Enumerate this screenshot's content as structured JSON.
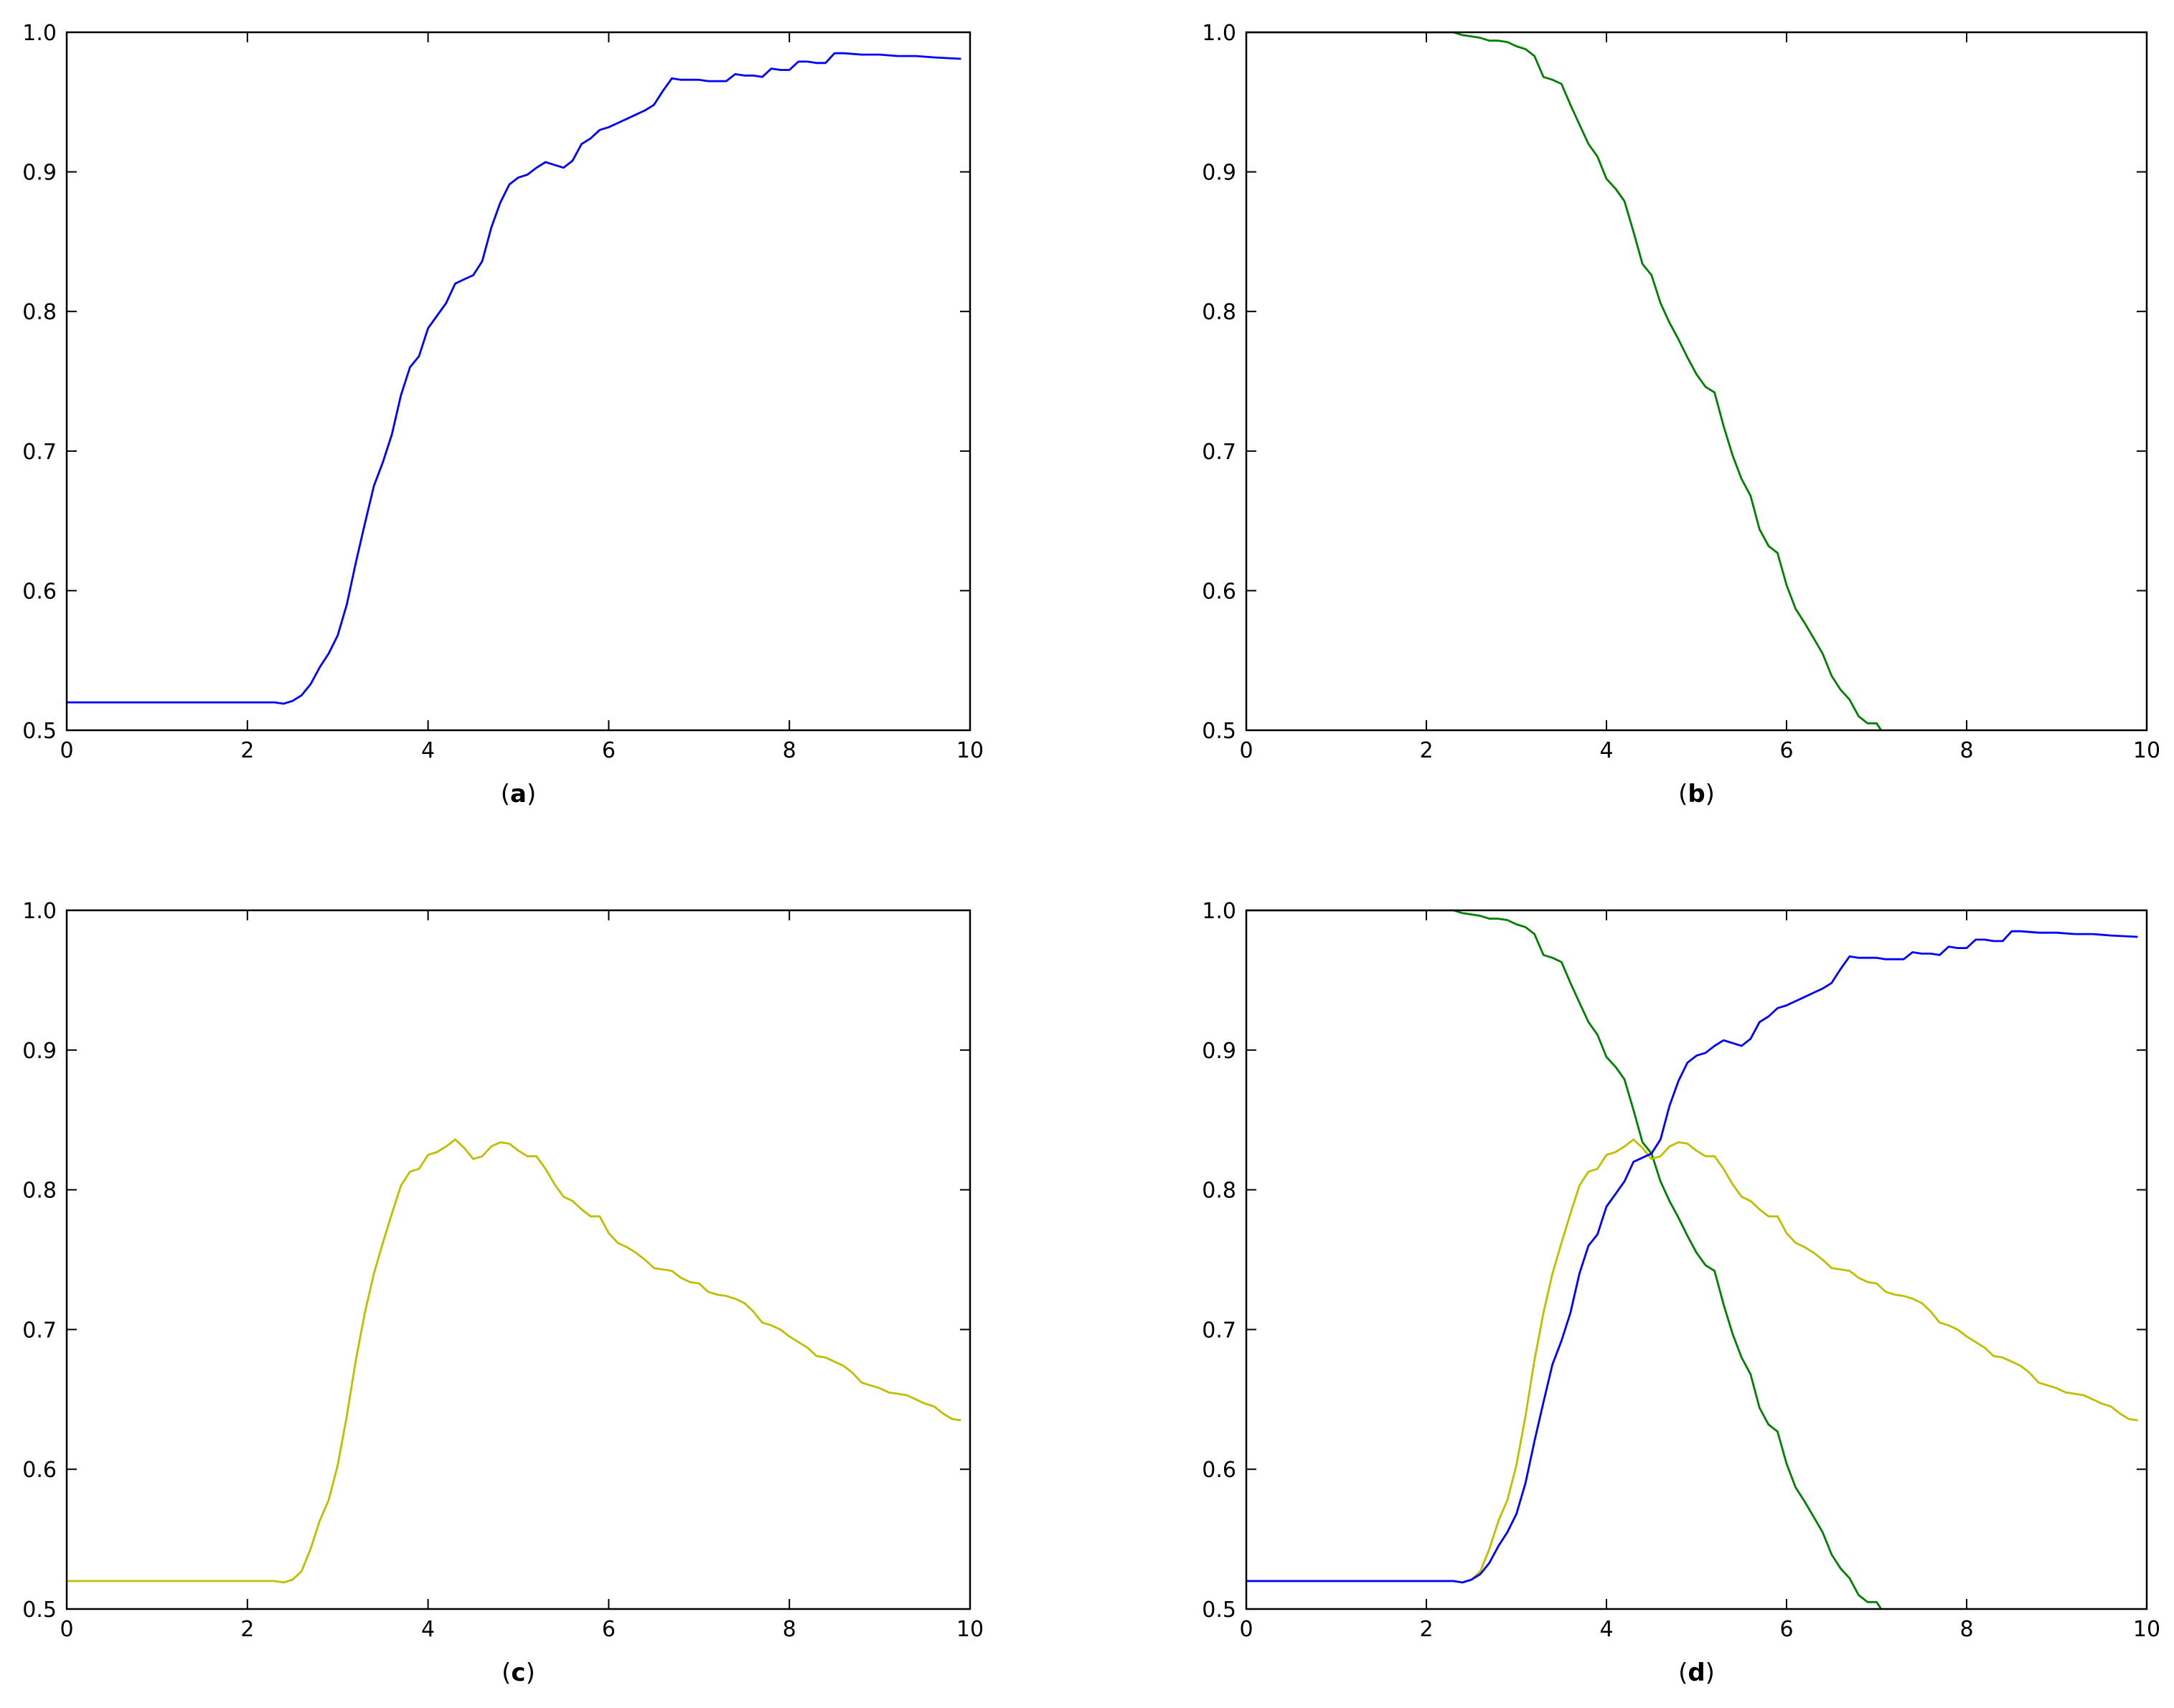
{
  "chart_data": [
    {
      "panel": "a",
      "type": "line",
      "caption": {
        "open": "(",
        "letter": "a",
        "close": ")"
      },
      "xlim": [
        0,
        10
      ],
      "ylim": [
        0.5,
        1.0
      ],
      "xticks": [
        0,
        2,
        4,
        6,
        8,
        10
      ],
      "yticks": [
        "0.5",
        "0.6",
        "0.7",
        "0.8",
        "0.9",
        "1.0"
      ],
      "grid": false,
      "series": [
        {
          "color": "#0000ff",
          "x": [
            0,
            2.3,
            2.4,
            2.5,
            2.6,
            2.7,
            2.8,
            2.9,
            3.0,
            3.1,
            3.2,
            3.3,
            3.4,
            3.5,
            3.6,
            3.7,
            3.8,
            3.9,
            4.0,
            4.1,
            4.2,
            4.3,
            4.4,
            4.5,
            4.6,
            4.7,
            4.8,
            4.9,
            5.0,
            5.1,
            5.2,
            5.3,
            5.4,
            5.5,
            5.6,
            5.7,
            5.8,
            5.9,
            6.0,
            6.1,
            6.2,
            6.3,
            6.4,
            6.5,
            6.6,
            6.7,
            6.8,
            6.9,
            7.0,
            7.1,
            7.2,
            7.3,
            7.4,
            7.5,
            7.6,
            7.7,
            7.8,
            7.9,
            8.0,
            8.1,
            8.2,
            8.3,
            8.4,
            8.5,
            8.6,
            8.8,
            9.0,
            9.2,
            9.4,
            9.6,
            9.9
          ],
          "y": [
            0.52,
            0.52,
            0.519,
            0.521,
            0.525,
            0.533,
            0.545,
            0.555,
            0.568,
            0.59,
            0.62,
            0.648,
            0.675,
            0.692,
            0.712,
            0.74,
            0.76,
            0.768,
            0.788,
            0.797,
            0.806,
            0.82,
            0.823,
            0.826,
            0.836,
            0.86,
            0.878,
            0.891,
            0.896,
            0.898,
            0.903,
            0.907,
            0.905,
            0.903,
            0.908,
            0.92,
            0.924,
            0.93,
            0.932,
            0.935,
            0.938,
            0.941,
            0.944,
            0.948,
            0.958,
            0.967,
            0.966,
            0.966,
            0.966,
            0.965,
            0.965,
            0.965,
            0.97,
            0.969,
            0.969,
            0.968,
            0.974,
            0.973,
            0.973,
            0.979,
            0.979,
            0.978,
            0.978,
            0.985,
            0.985,
            0.984,
            0.984,
            0.983,
            0.983,
            0.982,
            0.981
          ]
        }
      ]
    },
    {
      "panel": "b",
      "type": "line",
      "caption": {
        "open": "(",
        "letter": "b",
        "close": ")"
      },
      "xlim": [
        0,
        10
      ],
      "ylim": [
        0.5,
        1.0
      ],
      "xticks": [
        0,
        2,
        4,
        6,
        8,
        10
      ],
      "yticks": [
        "0.5",
        "0.6",
        "0.7",
        "0.8",
        "0.9",
        "1.0"
      ],
      "grid": false,
      "series": [
        {
          "color": "#008000",
          "x": [
            0,
            2.3,
            2.4,
            2.5,
            2.6,
            2.7,
            2.8,
            2.9,
            3.0,
            3.1,
            3.2,
            3.3,
            3.4,
            3.5,
            3.6,
            3.7,
            3.8,
            3.9,
            4.0,
            4.1,
            4.2,
            4.3,
            4.4,
            4.5,
            4.6,
            4.7,
            4.8,
            4.9,
            5.0,
            5.1,
            5.2,
            5.3,
            5.4,
            5.5,
            5.6,
            5.7,
            5.8,
            5.9,
            6.0,
            6.1,
            6.2,
            6.3,
            6.4,
            6.5,
            6.6,
            6.7,
            6.8,
            6.9,
            7.0,
            7.05
          ],
          "y": [
            1.0,
            1.0,
            0.998,
            0.997,
            0.996,
            0.994,
            0.994,
            0.993,
            0.99,
            0.988,
            0.983,
            0.968,
            0.966,
            0.963,
            0.948,
            0.934,
            0.92,
            0.911,
            0.895,
            0.888,
            0.879,
            0.857,
            0.834,
            0.826,
            0.806,
            0.792,
            0.78,
            0.767,
            0.755,
            0.746,
            0.742,
            0.718,
            0.697,
            0.68,
            0.668,
            0.644,
            0.632,
            0.627,
            0.604,
            0.587,
            0.577,
            0.566,
            0.555,
            0.539,
            0.529,
            0.522,
            0.51,
            0.505,
            0.505,
            0.5
          ]
        }
      ]
    },
    {
      "panel": "c",
      "type": "line",
      "caption": {
        "open": "(",
        "letter": "c",
        "close": ")"
      },
      "xlim": [
        0,
        10
      ],
      "ylim": [
        0.5,
        1.0
      ],
      "xticks": [
        0,
        2,
        4,
        6,
        8,
        10
      ],
      "yticks": [
        "0.5",
        "0.6",
        "0.7",
        "0.8",
        "0.9",
        "1.0"
      ],
      "grid": false,
      "series": [
        {
          "color": "#bfbf00",
          "x": [
            0,
            2.3,
            2.4,
            2.5,
            2.6,
            2.7,
            2.8,
            2.9,
            3.0,
            3.1,
            3.2,
            3.3,
            3.4,
            3.5,
            3.6,
            3.7,
            3.8,
            3.9,
            4.0,
            4.1,
            4.2,
            4.3,
            4.4,
            4.5,
            4.6,
            4.7,
            4.8,
            4.9,
            5.0,
            5.1,
            5.2,
            5.3,
            5.4,
            5.5,
            5.6,
            5.7,
            5.8,
            5.9,
            6.0,
            6.1,
            6.2,
            6.3,
            6.4,
            6.5,
            6.6,
            6.7,
            6.8,
            6.9,
            7.0,
            7.1,
            7.2,
            7.3,
            7.4,
            7.5,
            7.6,
            7.7,
            7.8,
            7.9,
            8.0,
            8.1,
            8.2,
            8.3,
            8.4,
            8.5,
            8.6,
            8.7,
            8.8,
            8.9,
            9.0,
            9.1,
            9.2,
            9.3,
            9.4,
            9.5,
            9.6,
            9.7,
            9.8,
            9.9
          ],
          "y": [
            0.52,
            0.52,
            0.519,
            0.521,
            0.527,
            0.543,
            0.563,
            0.578,
            0.603,
            0.638,
            0.678,
            0.712,
            0.74,
            0.762,
            0.783,
            0.803,
            0.813,
            0.815,
            0.825,
            0.827,
            0.831,
            0.836,
            0.83,
            0.822,
            0.824,
            0.831,
            0.834,
            0.833,
            0.828,
            0.824,
            0.824,
            0.815,
            0.804,
            0.795,
            0.792,
            0.786,
            0.781,
            0.781,
            0.769,
            0.762,
            0.759,
            0.755,
            0.75,
            0.744,
            0.743,
            0.742,
            0.737,
            0.734,
            0.733,
            0.727,
            0.725,
            0.724,
            0.722,
            0.719,
            0.713,
            0.705,
            0.703,
            0.7,
            0.695,
            0.691,
            0.687,
            0.681,
            0.68,
            0.677,
            0.674,
            0.669,
            0.662,
            0.66,
            0.658,
            0.655,
            0.654,
            0.653,
            0.65,
            0.647,
            0.645,
            0.64,
            0.636,
            0.635
          ]
        }
      ]
    },
    {
      "panel": "d",
      "type": "line",
      "caption": {
        "open": "(",
        "letter": "d",
        "close": ")"
      },
      "xlim": [
        0,
        10
      ],
      "ylim": [
        0.5,
        1.0
      ],
      "xticks": [
        0,
        2,
        4,
        6,
        8,
        10
      ],
      "yticks": [
        "0.5",
        "0.6",
        "0.7",
        "0.8",
        "0.9",
        "1.0"
      ],
      "grid": false,
      "series": [
        {
          "color": "#008000",
          "x": [
            0,
            2.3,
            2.4,
            2.5,
            2.6,
            2.7,
            2.8,
            2.9,
            3.0,
            3.1,
            3.2,
            3.3,
            3.4,
            3.5,
            3.6,
            3.7,
            3.8,
            3.9,
            4.0,
            4.1,
            4.2,
            4.3,
            4.4,
            4.5,
            4.6,
            4.7,
            4.8,
            4.9,
            5.0,
            5.1,
            5.2,
            5.3,
            5.4,
            5.5,
            5.6,
            5.7,
            5.8,
            5.9,
            6.0,
            6.1,
            6.2,
            6.3,
            6.4,
            6.5,
            6.6,
            6.7,
            6.8,
            6.9,
            7.0,
            7.05
          ],
          "y": [
            1.0,
            1.0,
            0.998,
            0.997,
            0.996,
            0.994,
            0.994,
            0.993,
            0.99,
            0.988,
            0.983,
            0.968,
            0.966,
            0.963,
            0.948,
            0.934,
            0.92,
            0.911,
            0.895,
            0.888,
            0.879,
            0.857,
            0.834,
            0.826,
            0.806,
            0.792,
            0.78,
            0.767,
            0.755,
            0.746,
            0.742,
            0.718,
            0.697,
            0.68,
            0.668,
            0.644,
            0.632,
            0.627,
            0.604,
            0.587,
            0.577,
            0.566,
            0.555,
            0.539,
            0.529,
            0.522,
            0.51,
            0.505,
            0.505,
            0.5
          ]
        },
        {
          "color": "#bfbf00",
          "x": [
            0,
            2.3,
            2.4,
            2.5,
            2.6,
            2.7,
            2.8,
            2.9,
            3.0,
            3.1,
            3.2,
            3.3,
            3.4,
            3.5,
            3.6,
            3.7,
            3.8,
            3.9,
            4.0,
            4.1,
            4.2,
            4.3,
            4.4,
            4.5,
            4.6,
            4.7,
            4.8,
            4.9,
            5.0,
            5.1,
            5.2,
            5.3,
            5.4,
            5.5,
            5.6,
            5.7,
            5.8,
            5.9,
            6.0,
            6.1,
            6.2,
            6.3,
            6.4,
            6.5,
            6.6,
            6.7,
            6.8,
            6.9,
            7.0,
            7.1,
            7.2,
            7.3,
            7.4,
            7.5,
            7.6,
            7.7,
            7.8,
            7.9,
            8.0,
            8.1,
            8.2,
            8.3,
            8.4,
            8.5,
            8.6,
            8.7,
            8.8,
            8.9,
            9.0,
            9.1,
            9.2,
            9.3,
            9.4,
            9.5,
            9.6,
            9.7,
            9.8,
            9.9
          ],
          "y": [
            0.52,
            0.52,
            0.519,
            0.521,
            0.527,
            0.543,
            0.563,
            0.578,
            0.603,
            0.638,
            0.678,
            0.712,
            0.74,
            0.762,
            0.783,
            0.803,
            0.813,
            0.815,
            0.825,
            0.827,
            0.831,
            0.836,
            0.83,
            0.822,
            0.824,
            0.831,
            0.834,
            0.833,
            0.828,
            0.824,
            0.824,
            0.815,
            0.804,
            0.795,
            0.792,
            0.786,
            0.781,
            0.781,
            0.769,
            0.762,
            0.759,
            0.755,
            0.75,
            0.744,
            0.743,
            0.742,
            0.737,
            0.734,
            0.733,
            0.727,
            0.725,
            0.724,
            0.722,
            0.719,
            0.713,
            0.705,
            0.703,
            0.7,
            0.695,
            0.691,
            0.687,
            0.681,
            0.68,
            0.677,
            0.674,
            0.669,
            0.662,
            0.66,
            0.658,
            0.655,
            0.654,
            0.653,
            0.65,
            0.647,
            0.645,
            0.64,
            0.636,
            0.635
          ]
        },
        {
          "color": "#0000ff",
          "x": [
            0,
            2.3,
            2.4,
            2.5,
            2.6,
            2.7,
            2.8,
            2.9,
            3.0,
            3.1,
            3.2,
            3.3,
            3.4,
            3.5,
            3.6,
            3.7,
            3.8,
            3.9,
            4.0,
            4.1,
            4.2,
            4.3,
            4.4,
            4.5,
            4.6,
            4.7,
            4.8,
            4.9,
            5.0,
            5.1,
            5.2,
            5.3,
            5.4,
            5.5,
            5.6,
            5.7,
            5.8,
            5.9,
            6.0,
            6.1,
            6.2,
            6.3,
            6.4,
            6.5,
            6.6,
            6.7,
            6.8,
            6.9,
            7.0,
            7.1,
            7.2,
            7.3,
            7.4,
            7.5,
            7.6,
            7.7,
            7.8,
            7.9,
            8.0,
            8.1,
            8.2,
            8.3,
            8.4,
            8.5,
            8.6,
            8.8,
            9.0,
            9.2,
            9.4,
            9.6,
            9.9
          ],
          "y": [
            0.52,
            0.52,
            0.519,
            0.521,
            0.525,
            0.533,
            0.545,
            0.555,
            0.568,
            0.59,
            0.62,
            0.648,
            0.675,
            0.692,
            0.712,
            0.74,
            0.76,
            0.768,
            0.788,
            0.797,
            0.806,
            0.82,
            0.823,
            0.826,
            0.836,
            0.86,
            0.878,
            0.891,
            0.896,
            0.898,
            0.903,
            0.907,
            0.905,
            0.903,
            0.908,
            0.92,
            0.924,
            0.93,
            0.932,
            0.935,
            0.938,
            0.941,
            0.944,
            0.948,
            0.958,
            0.967,
            0.966,
            0.966,
            0.966,
            0.965,
            0.965,
            0.965,
            0.97,
            0.969,
            0.969,
            0.968,
            0.974,
            0.973,
            0.973,
            0.979,
            0.979,
            0.978,
            0.978,
            0.985,
            0.985,
            0.984,
            0.984,
            0.983,
            0.983,
            0.982,
            0.981
          ]
        }
      ]
    }
  ]
}
